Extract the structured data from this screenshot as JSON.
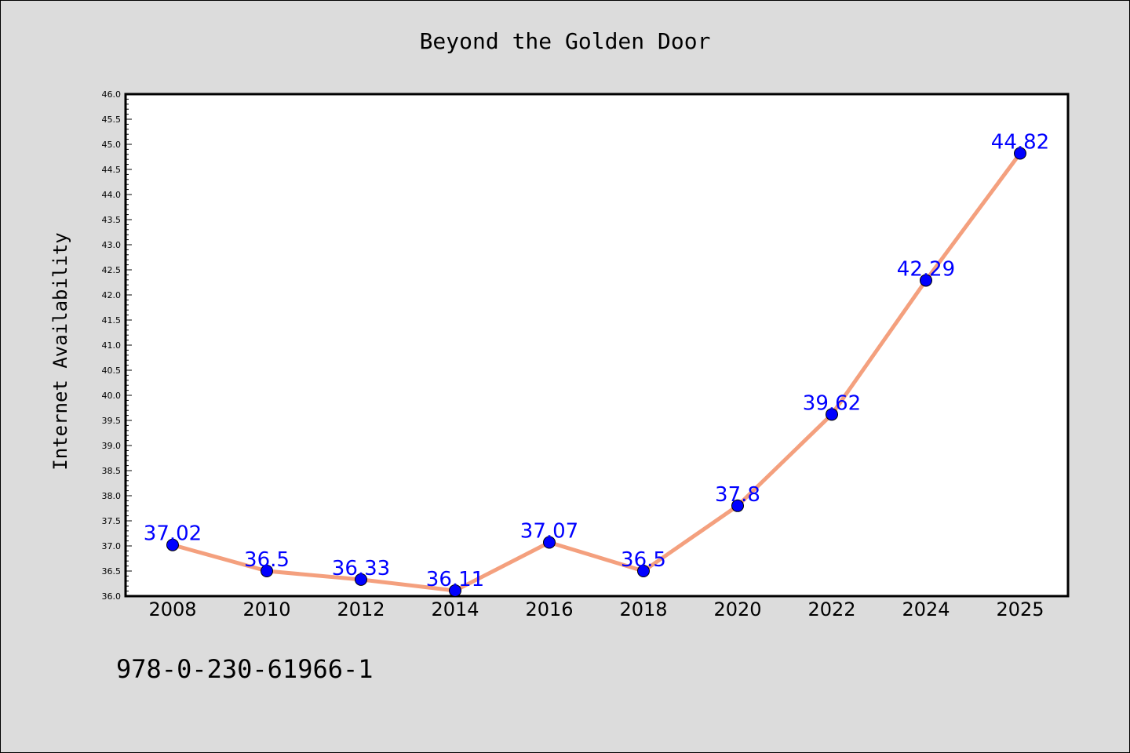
{
  "chart_data": {
    "type": "line",
    "title": "Beyond the Golden Door",
    "xlabel": "",
    "ylabel": "Internet Availability",
    "categories": [
      "2008",
      "2010",
      "2012",
      "2014",
      "2016",
      "2018",
      "2020",
      "2022",
      "2024",
      "2025"
    ],
    "series": [
      {
        "values": [
          37.02,
          36.5,
          36.33,
          36.11,
          37.07,
          36.5,
          37.8,
          39.62,
          42.29,
          44.82
        ],
        "labels": [
          "37.02",
          "36.5",
          "36.33",
          "36.11",
          "37.07",
          "36.5",
          "37.8",
          "39.62",
          "42.29",
          "44.82"
        ]
      }
    ],
    "ylim": [
      36.0,
      46.0
    ],
    "ytick_step": 0.5,
    "grid": false,
    "line_color": "#f4a07e",
    "marker_color": "#0000ff",
    "label_color": "#0000ff"
  },
  "footer": {
    "isbn": "978-0-230-61966-1"
  },
  "colors": {
    "background": "#dcdcdc",
    "plot_background": "#ffffff"
  }
}
